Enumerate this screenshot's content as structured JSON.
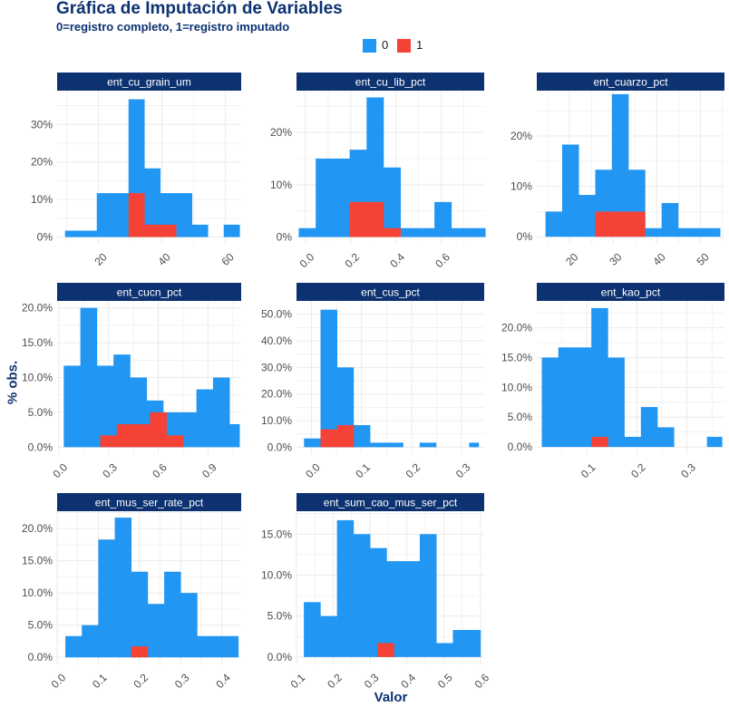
{
  "title": "Gráfica de Imputación de Variables",
  "subtitle": "0=registro completo, 1=registro imputado",
  "legend": [
    {
      "label": "0",
      "color": "#2196f3"
    },
    {
      "label": "1",
      "color": "#f44336"
    }
  ],
  "y_axis_title": "% obs.",
  "x_axis_title": "Valor",
  "colors": {
    "complete": "#2196f3",
    "imputed": "#f44336",
    "strip_background": "#0d3272",
    "strip_text": "#ffffff",
    "grid": "#ebebeb",
    "title": "#0d3272"
  },
  "chart_data": [
    {
      "type": "bar",
      "panel": "ent_cu_grain_um",
      "xlim": [
        7,
        65
      ],
      "ylim": [
        -1.8,
        39
      ],
      "x_ticks": [
        20,
        40,
        60
      ],
      "x_tick_labels": [
        "20",
        "40",
        "60"
      ],
      "y_ticks": [
        0,
        10,
        20,
        30
      ],
      "y_tick_labels": [
        "0%",
        "10%",
        "20%",
        "30%"
      ],
      "series": [
        {
          "name": "0",
          "bins": [
            [
              9.5,
              14.5,
              1.7
            ],
            [
              14.5,
              19.5,
              1.7
            ],
            [
              19.5,
              24.5,
              11.7
            ],
            [
              24.5,
              29.5,
              11.7
            ],
            [
              29.5,
              34.5,
              36.7
            ],
            [
              34.5,
              39.5,
              18.3
            ],
            [
              39.5,
              44.5,
              11.7
            ],
            [
              44.5,
              49.5,
              11.7
            ],
            [
              49.5,
              54.5,
              3.3
            ],
            [
              54.5,
              59.5,
              0
            ],
            [
              59.5,
              64.5,
              3.3
            ]
          ]
        },
        {
          "name": "1",
          "bins": [
            [
              29.5,
              34.5,
              11.7
            ],
            [
              34.5,
              39.5,
              3.3
            ],
            [
              39.5,
              44.5,
              3.3
            ]
          ]
        }
      ]
    },
    {
      "type": "bar",
      "panel": "ent_cu_lib_pct",
      "xlim": [
        -0.04,
        0.79
      ],
      "ylim": [
        -1.3,
        28
      ],
      "x_ticks": [
        0.0,
        0.2,
        0.4,
        0.6
      ],
      "x_tick_labels": [
        "0.0",
        "0.2",
        "0.4",
        "0.6"
      ],
      "y_ticks": [
        0,
        10,
        20
      ],
      "y_tick_labels": [
        "0%",
        "10%",
        "20%"
      ],
      "series": [
        {
          "name": "0",
          "bins": [
            [
              -0.03,
              0.045,
              1.7
            ],
            [
              0.045,
              0.12,
              15
            ],
            [
              0.12,
              0.195,
              15
            ],
            [
              0.195,
              0.27,
              16.7
            ],
            [
              0.27,
              0.345,
              26.7
            ],
            [
              0.345,
              0.42,
              13.3
            ],
            [
              0.42,
              0.495,
              1.7
            ],
            [
              0.495,
              0.57,
              1.7
            ],
            [
              0.57,
              0.645,
              6.7
            ],
            [
              0.645,
              0.72,
              1.7
            ],
            [
              0.72,
              0.795,
              1.7
            ]
          ]
        },
        {
          "name": "1",
          "bins": [
            [
              0.195,
              0.27,
              6.7
            ],
            [
              0.27,
              0.345,
              6.7
            ],
            [
              0.345,
              0.42,
              1.7
            ]
          ]
        }
      ]
    },
    {
      "type": "bar",
      "panel": "ent_cuarzo_pct",
      "xlim": [
        12.5,
        55.5
      ],
      "ylim": [
        -1.4,
        29
      ],
      "x_ticks": [
        20,
        30,
        40,
        50
      ],
      "x_tick_labels": [
        "20",
        "30",
        "40",
        "50"
      ],
      "y_ticks": [
        0,
        10,
        20
      ],
      "y_tick_labels": [
        "0%",
        "10%",
        "20%"
      ],
      "series": [
        {
          "name": "0",
          "bins": [
            [
              14.5,
              18.3,
              5
            ],
            [
              18.3,
              22.1,
              18.3
            ],
            [
              22.1,
              25.9,
              8.3
            ],
            [
              25.9,
              29.7,
              13.3
            ],
            [
              29.7,
              33.5,
              28.3
            ],
            [
              33.5,
              37.3,
              13.3
            ],
            [
              37.3,
              41.1,
              1.7
            ],
            [
              41.1,
              44.9,
              6.7
            ],
            [
              44.9,
              48.7,
              1.7
            ],
            [
              48.7,
              52.5,
              1.7
            ],
            [
              52.5,
              54.5,
              1.7
            ]
          ]
        },
        {
          "name": "1",
          "bins": [
            [
              25.9,
              29.7,
              5
            ],
            [
              29.7,
              33.5,
              5
            ],
            [
              33.5,
              37.3,
              5
            ]
          ]
        }
      ]
    },
    {
      "type": "bar",
      "panel": "ent_cucn_pct",
      "xlim": [
        -0.01,
        1.1
      ],
      "ylim": [
        -1.0,
        21
      ],
      "x_ticks": [
        0.0,
        0.3,
        0.6,
        0.9
      ],
      "x_tick_labels": [
        "0.0",
        "0.3",
        "0.6",
        "0.9"
      ],
      "y_ticks": [
        0,
        5,
        10,
        15,
        20
      ],
      "y_tick_labels": [
        "0.0%",
        "5.0%",
        "10.0%",
        "15.0%",
        "20.0%"
      ],
      "series": [
        {
          "name": "0",
          "bins": [
            [
              0.03,
              0.13,
              11.7
            ],
            [
              0.13,
              0.23,
              20
            ],
            [
              0.23,
              0.33,
              11.7
            ],
            [
              0.33,
              0.43,
              13.3
            ],
            [
              0.43,
              0.53,
              10
            ],
            [
              0.53,
              0.63,
              6.7
            ],
            [
              0.63,
              0.73,
              5
            ],
            [
              0.73,
              0.83,
              5
            ],
            [
              0.83,
              0.93,
              8.3
            ],
            [
              0.93,
              1.03,
              10
            ],
            [
              1.03,
              1.09,
              3.3
            ]
          ]
        },
        {
          "name": "1",
          "bins": [
            [
              0.25,
              0.35,
              1.7
            ],
            [
              0.35,
              0.45,
              3.3
            ],
            [
              0.45,
              0.55,
              3.3
            ],
            [
              0.55,
              0.65,
              5
            ],
            [
              0.65,
              0.75,
              1.7
            ]
          ]
        }
      ]
    },
    {
      "type": "bar",
      "panel": "ent_cus_pct",
      "xlim": [
        -0.03,
        0.345
      ],
      "ylim": [
        -2.6,
        55
      ],
      "x_ticks": [
        0.0,
        0.1,
        0.2,
        0.3
      ],
      "x_tick_labels": [
        "0.0",
        "0.1",
        "0.2",
        "0.3"
      ],
      "y_ticks": [
        0,
        10,
        20,
        30,
        40,
        50
      ],
      "y_tick_labels": [
        "0.0%",
        "10.0%",
        "20.0%",
        "30.0%",
        "40.0%",
        "50.0%"
      ],
      "series": [
        {
          "name": "0",
          "bins": [
            [
              -0.015,
              0.018,
              3.3
            ],
            [
              0.018,
              0.051,
              51.7
            ],
            [
              0.051,
              0.084,
              30
            ],
            [
              0.084,
              0.117,
              8.3
            ],
            [
              0.117,
              0.15,
              1.7
            ],
            [
              0.15,
              0.183,
              1.7
            ],
            [
              0.183,
              0.216,
              0
            ],
            [
              0.216,
              0.249,
              1.7
            ],
            [
              0.249,
              0.282,
              0
            ],
            [
              0.282,
              0.315,
              0
            ],
            [
              0.315,
              0.334,
              1.7
            ]
          ]
        },
        {
          "name": "1",
          "bins": [
            [
              0.018,
              0.051,
              6.7
            ],
            [
              0.051,
              0.084,
              8.3
            ]
          ]
        }
      ]
    },
    {
      "type": "bar",
      "panel": "ent_kao_pct",
      "xlim": [
        -0.0,
        0.375
      ],
      "ylim": [
        -1.2,
        24.5
      ],
      "x_ticks": [
        0.1,
        0.2,
        0.3
      ],
      "x_tick_labels": [
        "0.1",
        "0.2",
        "0.3"
      ],
      "y_ticks": [
        0,
        5,
        10,
        15,
        20
      ],
      "y_tick_labels": [
        "0.0%",
        "5.0%",
        "10.0%",
        "15.0%",
        "20.0%"
      ],
      "series": [
        {
          "name": "0",
          "bins": [
            [
              0.01,
              0.043,
              15
            ],
            [
              0.043,
              0.076,
              16.7
            ],
            [
              0.076,
              0.109,
              16.7
            ],
            [
              0.109,
              0.142,
              23.3
            ],
            [
              0.142,
              0.175,
              15
            ],
            [
              0.175,
              0.208,
              1.7
            ],
            [
              0.208,
              0.241,
              6.7
            ],
            [
              0.241,
              0.274,
              3.3
            ],
            [
              0.274,
              0.307,
              0
            ],
            [
              0.307,
              0.34,
              0
            ],
            [
              0.34,
              0.37,
              1.7
            ]
          ]
        },
        {
          "name": "1",
          "bins": [
            [
              0.109,
              0.142,
              1.7
            ]
          ]
        }
      ]
    },
    {
      "type": "bar",
      "panel": "ent_mus_ser_rate_pct",
      "xlim": [
        0.0,
        0.447
      ],
      "ylim": [
        -1.1,
        22.7
      ],
      "x_ticks": [
        0.0,
        0.1,
        0.2,
        0.3,
        0.4
      ],
      "x_tick_labels": [
        "0.0",
        "0.1",
        "0.2",
        "0.3",
        "0.4"
      ],
      "y_ticks": [
        0,
        5,
        10,
        15,
        20
      ],
      "y_tick_labels": [
        "0.0%",
        "5.0%",
        "10.0%",
        "15.0%",
        "20.0%"
      ],
      "series": [
        {
          "name": "0",
          "bins": [
            [
              0.02,
              0.06,
              3.3
            ],
            [
              0.06,
              0.1,
              5
            ],
            [
              0.1,
              0.14,
              18.3
            ],
            [
              0.14,
              0.18,
              21.7
            ],
            [
              0.18,
              0.22,
              13.3
            ],
            [
              0.22,
              0.26,
              8.3
            ],
            [
              0.26,
              0.3,
              13.3
            ],
            [
              0.3,
              0.34,
              10
            ],
            [
              0.34,
              0.38,
              3.3
            ],
            [
              0.38,
              0.42,
              3.3
            ],
            [
              0.42,
              0.44,
              3.3
            ]
          ]
        },
        {
          "name": "1",
          "bins": [
            [
              0.18,
              0.22,
              1.7
            ]
          ]
        }
      ]
    },
    {
      "type": "bar",
      "panel": "ent_sum_cao_mus_ser_pct",
      "xlim": [
        0.1,
        0.61
      ],
      "ylim": [
        -0.9,
        17.8
      ],
      "x_ticks": [
        0.1,
        0.2,
        0.3,
        0.4,
        0.5,
        0.6
      ],
      "x_tick_labels": [
        "0.1",
        "0.2",
        "0.3",
        "0.4",
        "0.5",
        "0.6"
      ],
      "y_ticks": [
        0,
        5,
        10,
        15
      ],
      "y_tick_labels": [
        "0.0%",
        "5.0%",
        "10.0%",
        "15.0%"
      ],
      "series": [
        {
          "name": "0",
          "bins": [
            [
              0.12,
              0.165,
              6.7
            ],
            [
              0.165,
              0.21,
              5
            ],
            [
              0.21,
              0.255,
              16.7
            ],
            [
              0.255,
              0.3,
              15
            ],
            [
              0.3,
              0.345,
              13.3
            ],
            [
              0.345,
              0.39,
              11.7
            ],
            [
              0.39,
              0.435,
              11.7
            ],
            [
              0.435,
              0.48,
              15
            ],
            [
              0.48,
              0.525,
              1.7
            ],
            [
              0.525,
              0.57,
              3.3
            ],
            [
              0.57,
              0.6,
              3.3
            ]
          ]
        },
        {
          "name": "1",
          "bins": [
            [
              0.32,
              0.365,
              1.7
            ]
          ]
        }
      ]
    }
  ]
}
